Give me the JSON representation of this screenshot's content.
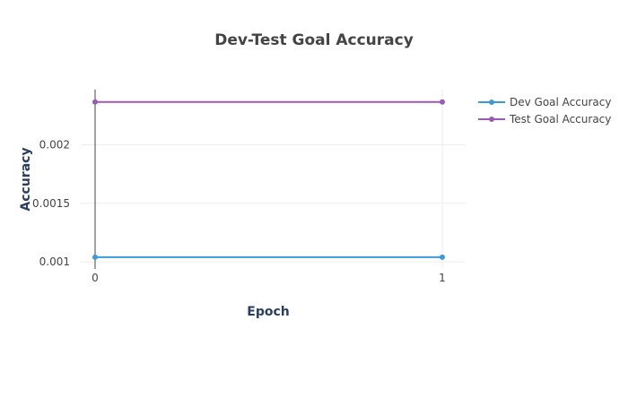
{
  "chart_data": {
    "type": "line",
    "title": "Dev-Test Goal Accuracy",
    "xlabel": "Epoch",
    "ylabel": "Accuracy",
    "x": [
      0,
      1
    ],
    "x_ticks": [
      "0",
      "1"
    ],
    "y_ticks": [
      "0.001",
      "0.0015",
      "0.002"
    ],
    "y_tick_values": [
      0.001,
      0.0015,
      0.002
    ],
    "xlim": [
      0,
      1
    ],
    "ylim": [
      0.00094,
      0.00247
    ],
    "grid": true,
    "legend_position": "top-right",
    "series": [
      {
        "name": "Dev Goal Accuracy",
        "values": [
          0.00104,
          0.00104
        ],
        "color": "#3d9ad8"
      },
      {
        "name": "Test Goal Accuracy",
        "values": [
          0.002365,
          0.002365
        ],
        "color": "#9b59b6"
      }
    ]
  }
}
